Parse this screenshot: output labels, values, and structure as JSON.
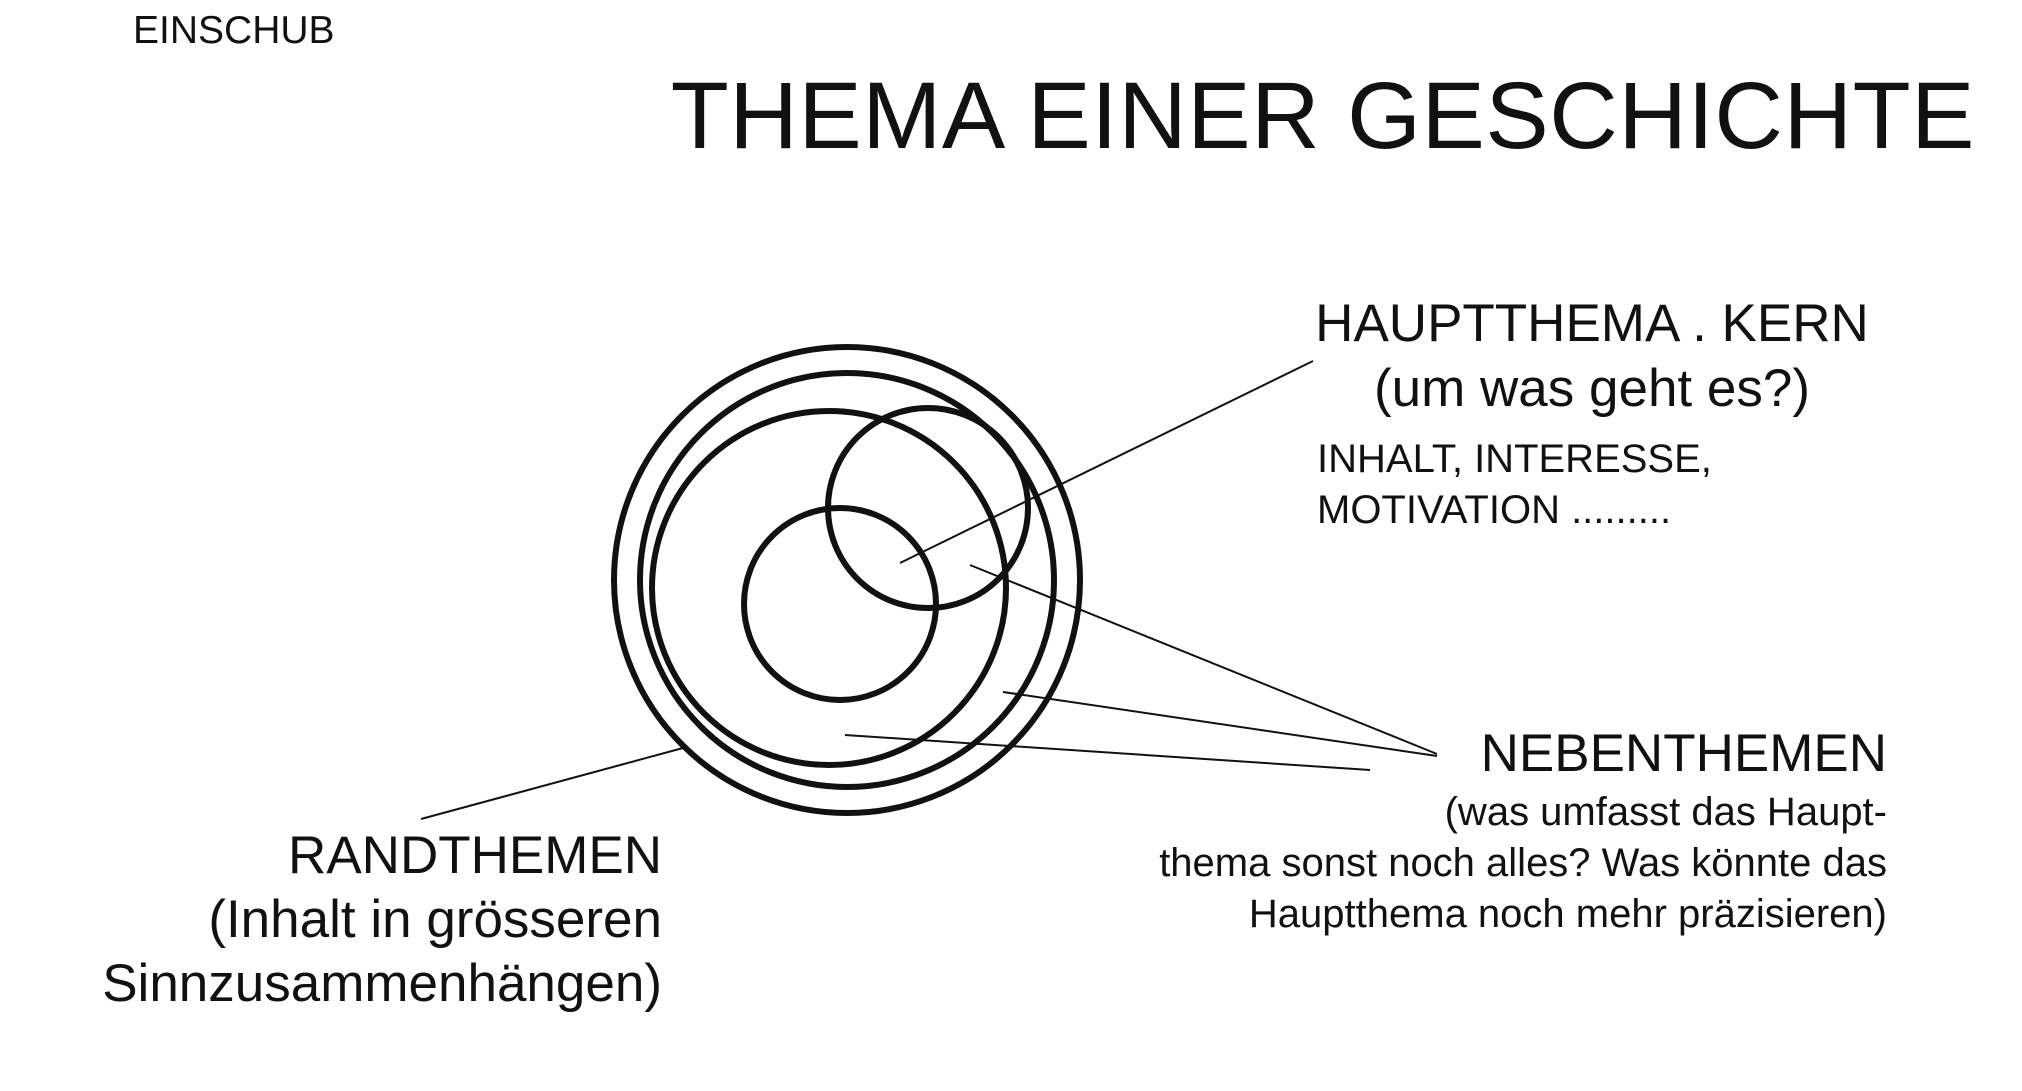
{
  "label": "EINSCHUB",
  "title": "THEMA EINER GESCHICHTE",
  "hauptthema": {
    "heading": "HAUPTTHEMA . KERN",
    "subheading": "(um was geht es?)",
    "description_lines": [
      "INHALT, INTERESSE,",
      "MOTIVATION ........."
    ]
  },
  "nebenthemen": {
    "heading": "NEBENTHEMEN",
    "description_lines": [
      "(was umfasst das Haupt-",
      "thema sonst noch alles? Was könnte das",
      "Hauptthema noch mehr präzisieren)"
    ]
  },
  "randthemen": {
    "heading": "RANDTHEMEN",
    "description_lines": [
      "(Inhalt in grösseren",
      "Sinnzusammenhängen)"
    ]
  },
  "colors": {
    "ink": "#111111",
    "background": "#ffffff"
  }
}
